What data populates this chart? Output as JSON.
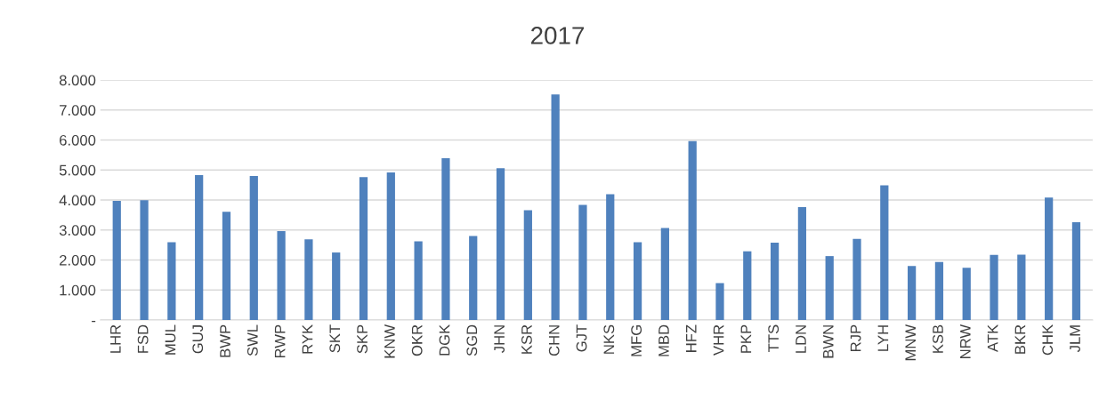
{
  "chart_data": {
    "type": "bar",
    "title": "2017",
    "categories": [
      "LHR",
      "FSD",
      "MUL",
      "GUJ",
      "BWP",
      "SWL",
      "RWP",
      "RYK",
      "SKT",
      "SKP",
      "KNW",
      "OKR",
      "DGK",
      "SGD",
      "JHN",
      "KSR",
      "CHN",
      "GJT",
      "NKS",
      "MFG",
      "MBD",
      "HFZ",
      "VHR",
      "PKP",
      "TTS",
      "LDN",
      "BWN",
      "RJP",
      "LYH",
      "MNW",
      "KSB",
      "NRW",
      "ATK",
      "BKR",
      "CHK",
      "JLM"
    ],
    "values": [
      3.97,
      3.99,
      2.59,
      4.83,
      3.61,
      4.8,
      2.96,
      2.69,
      2.25,
      4.76,
      4.92,
      2.62,
      5.39,
      2.8,
      5.06,
      3.66,
      7.52,
      3.84,
      4.19,
      2.59,
      3.07,
      5.96,
      1.23,
      2.29,
      2.58,
      3.76,
      2.13,
      2.7,
      4.49,
      1.8,
      1.93,
      1.74,
      2.17,
      2.18,
      4.08,
      3.26
    ],
    "color": "#4f81bd",
    "ylim": [
      0,
      8
    ],
    "yticks": [
      {
        "value": 0,
        "label": "-"
      },
      {
        "value": 1,
        "label": "1.000"
      },
      {
        "value": 2,
        "label": "2.000"
      },
      {
        "value": 3,
        "label": "3.000"
      },
      {
        "value": 4,
        "label": "4.000"
      },
      {
        "value": 5,
        "label": "5.000"
      },
      {
        "value": 6,
        "label": "6.000"
      },
      {
        "value": 7,
        "label": "7.000"
      },
      {
        "value": 8,
        "label": "8.000"
      }
    ],
    "grid": "y",
    "legend": false
  }
}
